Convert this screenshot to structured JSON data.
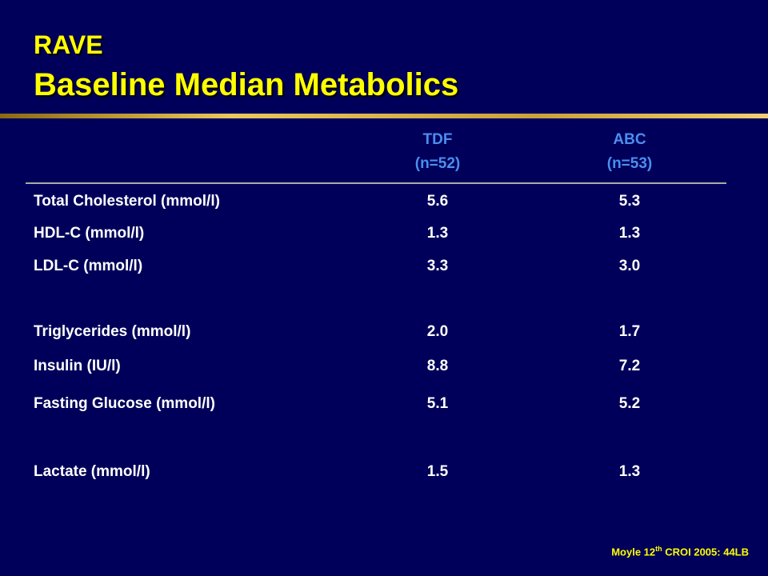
{
  "title": {
    "line1": "RAVE",
    "line2": "Baseline Median Metabolics"
  },
  "columns": [
    {
      "name": "TDF",
      "n": "(n=52)"
    },
    {
      "name": "ABC",
      "n": "(n=53)"
    }
  ],
  "rows": [
    {
      "label": "Total Cholesterol (mmol/l)",
      "tdf": "5.6",
      "abc": "5.3"
    },
    {
      "label": "HDL-C (mmol/l)",
      "tdf": "1.3",
      "abc": "1.3"
    },
    {
      "label": "LDL-C (mmol/l)",
      "tdf": "3.3",
      "abc": "3.0"
    },
    {
      "label": "Triglycerides (mmol/l)",
      "tdf": "2.0",
      "abc": "1.7"
    },
    {
      "label": "Insulin (IU/l)",
      "tdf": "8.8",
      "abc": "7.2"
    },
    {
      "label": "Fasting Glucose (mmol/l)",
      "tdf": "5.1",
      "abc": "5.2"
    },
    {
      "label": "Lactate (mmol/l)",
      "tdf": "1.5",
      "abc": "1.3"
    }
  ],
  "citation": {
    "prefix": "Moyle 12",
    "superscript": "th",
    "suffix": " CROI 2005: 44LB"
  },
  "colors": {
    "background": "#00005a",
    "title": "#ffff00",
    "column_header": "#4b8ef0",
    "body_text": "#ffffff"
  }
}
